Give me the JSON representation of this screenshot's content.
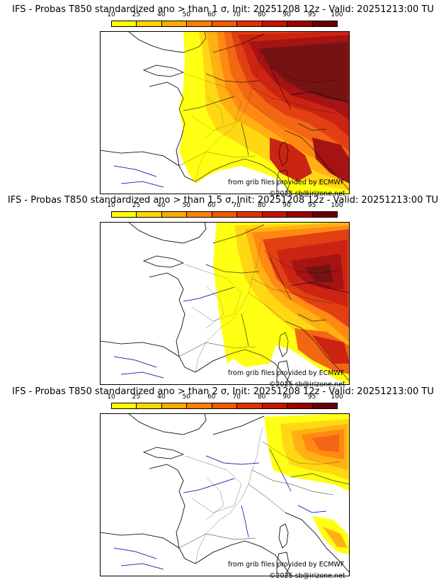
{
  "panels": [
    {
      "title": "IFS - Probas T850  standardized ano > than 1 σ, Init: 20251208 12z - Valid: 20251213:00 TU"
    },
    {
      "title": "IFS - Probas T850  standardized ano > than 1.5 σ, Init: 20251208 12z - Valid: 20251213:00 TU"
    },
    {
      "title": "IFS - Probas T850  standardized ano > than 2 σ, Init: 20251208 12z - Valid: 20251213:00 TU"
    }
  ],
  "legend": {
    "ticks": [
      "10",
      "25",
      "40",
      "50",
      "60",
      "70",
      "80",
      "90",
      "95",
      "100"
    ],
    "colors": [
      "#ffff00",
      "#ffd500",
      "#ffaa00",
      "#ff8000",
      "#f25a00",
      "#e03000",
      "#c81200",
      "#9e0000",
      "#6a0000"
    ]
  },
  "credits": {
    "source": "from grib files provided by ECMWF",
    "copyright": "©2025 sb@irizone.net"
  },
  "chart_data": [
    {
      "type": "heatmap",
      "title": "IFS - Probas T850  standardized ano > than 1 σ, Init: 20251208 12z - Valid: 20251213:00 TU",
      "legend_ticks": [
        10,
        25,
        40,
        50,
        60,
        70,
        80,
        90,
        95,
        100
      ]
    },
    {
      "type": "heatmap",
      "title": "IFS - Probas T850  standardized ano > than 1.5 σ, Init: 20251208 12z - Valid: 20251213:00 TU",
      "legend_ticks": [
        10,
        25,
        40,
        50,
        60,
        70,
        80,
        90,
        95,
        100
      ]
    },
    {
      "type": "heatmap",
      "title": "IFS - Probas T850  standardized ano > than 2 σ, Init: 20251208 12z - Valid: 20251213:00 TU",
      "legend_ticks": [
        10,
        25,
        40,
        50,
        60,
        70,
        80,
        90,
        95,
        100
      ]
    }
  ]
}
